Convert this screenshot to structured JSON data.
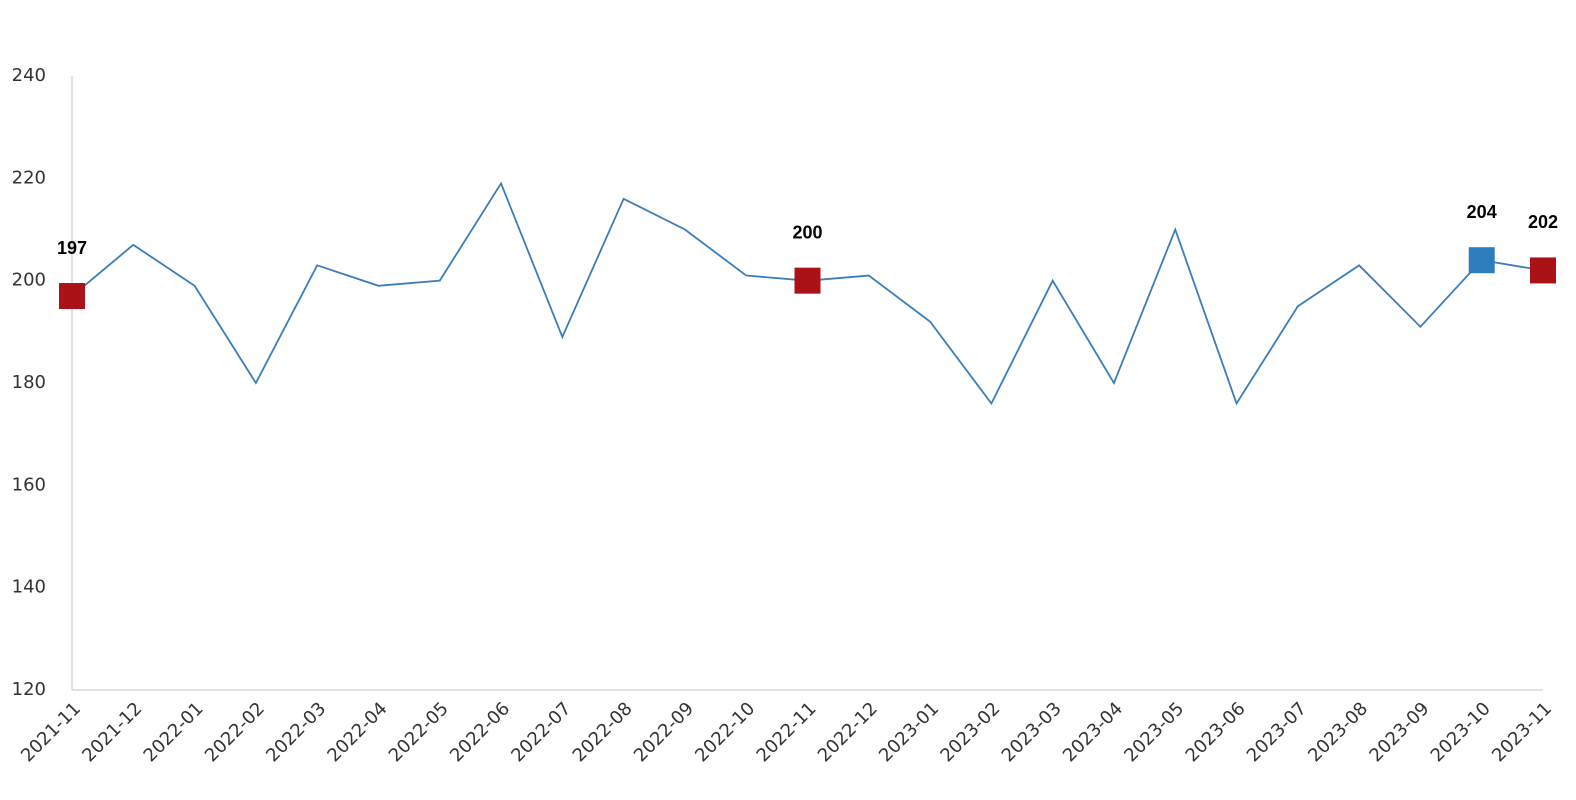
{
  "chart_data": {
    "type": "line",
    "categories": [
      "2021-11",
      "2021-12",
      "2022-01",
      "2022-02",
      "2022-03",
      "2022-04",
      "2022-05",
      "2022-06",
      "2022-07",
      "2022-08",
      "2022-09",
      "2022-10",
      "2022-11",
      "2022-12",
      "2023-01",
      "2023-02",
      "2023-03",
      "2023-04",
      "2023-05",
      "2023-06",
      "2023-07",
      "2023-08",
      "2023-09",
      "2023-10",
      "2023-11"
    ],
    "values": [
      197,
      207,
      199,
      180,
      203,
      199,
      200,
      219,
      189,
      216,
      210,
      201,
      200,
      201,
      192,
      176,
      200,
      180,
      210,
      176,
      195,
      203,
      191,
      204,
      202
    ],
    "color": "#3a7dba",
    "markers": [
      {
        "index": 0,
        "color": "#ab1218"
      },
      {
        "index": 12,
        "color": "#ab1218"
      },
      {
        "index": 23,
        "color": "#2e7dbf"
      },
      {
        "index": 24,
        "color": "#ab1218"
      }
    ],
    "ylim": [
      120,
      240
    ],
    "yticks": [
      120,
      140,
      160,
      180,
      200,
      220,
      240
    ],
    "grid": false
  }
}
